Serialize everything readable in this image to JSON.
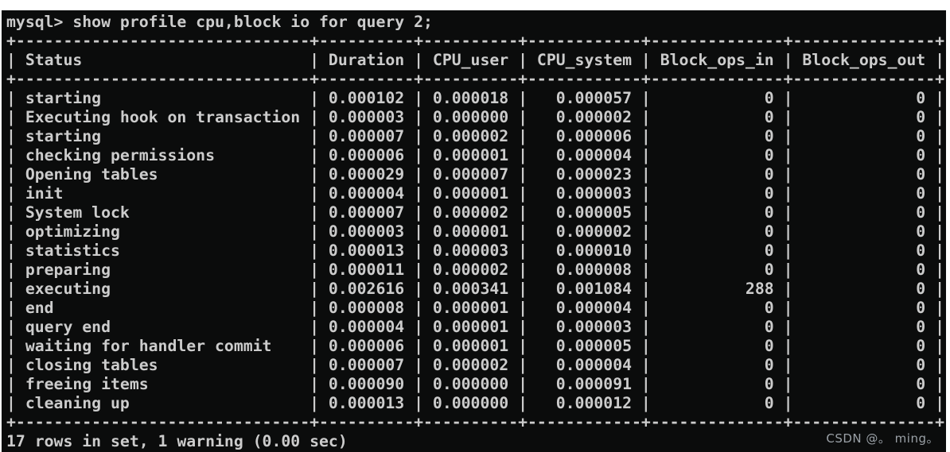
{
  "colors": {
    "page_background": "#ffffff",
    "terminal_background": "#0b0c0c",
    "terminal_text": "#cccccc",
    "watermark_text": "#9aa0a6"
  },
  "terminal": {
    "command_line": "mysql> show profile cpu,block io for query 2;",
    "footer": "17 rows in set, 1 warning (0.00 sec)"
  },
  "table": {
    "columns": [
      "Status",
      "Duration",
      "CPU_user",
      "CPU_system",
      "Block_ops_in",
      "Block_ops_out"
    ],
    "align": [
      "left",
      "left",
      "left",
      "right",
      "right",
      "right"
    ],
    "rows": [
      [
        "starting",
        "0.000102",
        "0.000018",
        "0.000057",
        "0",
        "0"
      ],
      [
        "Executing hook on transaction",
        "0.000003",
        "0.000000",
        "0.000002",
        "0",
        "0"
      ],
      [
        "starting",
        "0.000007",
        "0.000002",
        "0.000006",
        "0",
        "0"
      ],
      [
        "checking permissions",
        "0.000006",
        "0.000001",
        "0.000004",
        "0",
        "0"
      ],
      [
        "Opening tables",
        "0.000029",
        "0.000007",
        "0.000023",
        "0",
        "0"
      ],
      [
        "init",
        "0.000004",
        "0.000001",
        "0.000003",
        "0",
        "0"
      ],
      [
        "System lock",
        "0.000007",
        "0.000002",
        "0.000005",
        "0",
        "0"
      ],
      [
        "optimizing",
        "0.000003",
        "0.000001",
        "0.000002",
        "0",
        "0"
      ],
      [
        "statistics",
        "0.000013",
        "0.000003",
        "0.000010",
        "0",
        "0"
      ],
      [
        "preparing",
        "0.000011",
        "0.000002",
        "0.000008",
        "0",
        "0"
      ],
      [
        "executing",
        "0.002616",
        "0.000341",
        "0.001084",
        "288",
        "0"
      ],
      [
        "end",
        "0.000008",
        "0.000001",
        "0.000004",
        "0",
        "0"
      ],
      [
        "query end",
        "0.000004",
        "0.000001",
        "0.000003",
        "0",
        "0"
      ],
      [
        "waiting for handler commit",
        "0.000006",
        "0.000001",
        "0.000005",
        "0",
        "0"
      ],
      [
        "closing tables",
        "0.000007",
        "0.000002",
        "0.000004",
        "0",
        "0"
      ],
      [
        "freeing items",
        "0.000090",
        "0.000000",
        "0.000091",
        "0",
        "0"
      ],
      [
        "cleaning up",
        "0.000013",
        "0.000000",
        "0.000012",
        "0",
        "0"
      ]
    ]
  },
  "watermark": "CSDN @。 ming。"
}
